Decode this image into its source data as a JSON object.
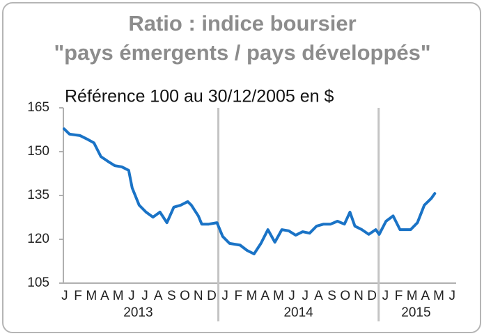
{
  "chart_data": {
    "type": "line",
    "title": "Ratio : indice boursier",
    "title_line2": "\"pays émergents / pays développés\"",
    "subtitle": "Référence 100 au 30/12/2005 en $",
    "x": [
      0.45,
      0.86,
      1.65,
      2.17,
      2.69,
      3.21,
      3.73,
      4.25,
      4.77,
      5.29,
      5.55,
      6.07,
      6.59,
      7.11,
      7.63,
      8.15,
      8.67,
      9.19,
      9.71,
      9.98,
      10.5,
      10.76,
      11.28,
      11.9,
      12.32,
      12.84,
      13.63,
      14.15,
      14.67,
      15.19,
      15.71,
      16.23,
      16.75,
      17.27,
      17.79,
      18.31,
      18.83,
      19.35,
      19.88,
      20.4,
      20.92,
      21.44,
      21.85,
      22.22,
      22.74,
      23.26,
      23.78,
      24.04,
      24.55,
      25.08,
      25.6,
      26.39,
      26.9,
      27.42,
      27.94,
      28.2
    ],
    "series": [
      {
        "color": "#1a73c6",
        "values": [
          157.8,
          156,
          155.5,
          154.3,
          153,
          148.3,
          146.7,
          145.2,
          144.8,
          143.6,
          137.6,
          131.7,
          129.3,
          127.6,
          129.3,
          125.7,
          131,
          131.7,
          132.9,
          131.7,
          128,
          125.2,
          125.2,
          125.7,
          121,
          118.6,
          118,
          116.2,
          115,
          118.6,
          123.3,
          119,
          123.3,
          122.9,
          121.4,
          122.6,
          122.1,
          124.5,
          125.2,
          125.2,
          126.2,
          125.2,
          129.3,
          124.5,
          123.3,
          121.7,
          123.3,
          121.7,
          126.2,
          128,
          123.3,
          123.3,
          125.7,
          131.7,
          134,
          135.7
        ]
      }
    ],
    "xlim": [
      0.4,
      29.8
    ],
    "ylim": [
      105,
      165
    ],
    "yticks": [
      105,
      120,
      135,
      150,
      165
    ],
    "xticks": [
      {
        "value": 0.5,
        "label": "J"
      },
      {
        "value": 1.5,
        "label": "F"
      },
      {
        "value": 2.5,
        "label": "M"
      },
      {
        "value": 3.5,
        "label": "A"
      },
      {
        "value": 4.5,
        "label": "M"
      },
      {
        "value": 5.5,
        "label": "J"
      },
      {
        "value": 6.5,
        "label": "J"
      },
      {
        "value": 7.5,
        "label": "A"
      },
      {
        "value": 8.5,
        "label": "S"
      },
      {
        "value": 9.5,
        "label": "O"
      },
      {
        "value": 10.5,
        "label": "N"
      },
      {
        "value": 11.5,
        "label": "D"
      },
      {
        "value": 12.5,
        "label": "J"
      },
      {
        "value": 13.5,
        "label": "F"
      },
      {
        "value": 14.5,
        "label": "M"
      },
      {
        "value": 15.5,
        "label": "A"
      },
      {
        "value": 16.5,
        "label": "M"
      },
      {
        "value": 17.5,
        "label": "J"
      },
      {
        "value": 18.5,
        "label": "J"
      },
      {
        "value": 19.5,
        "label": "A"
      },
      {
        "value": 20.5,
        "label": "S"
      },
      {
        "value": 21.5,
        "label": "O"
      },
      {
        "value": 22.5,
        "label": "N"
      },
      {
        "value": 23.5,
        "label": "D"
      },
      {
        "value": 24.5,
        "label": "J"
      },
      {
        "value": 25.5,
        "label": "F"
      },
      {
        "value": 26.5,
        "label": "M"
      },
      {
        "value": 27.5,
        "label": "A"
      },
      {
        "value": 28.5,
        "label": "M"
      },
      {
        "value": 29.5,
        "label": "J"
      }
    ],
    "year_ticks": [
      {
        "value": 6,
        "label": "2013"
      },
      {
        "value": 18,
        "label": "2014"
      },
      {
        "value": 26.8,
        "label": "2015"
      }
    ],
    "year_bounds": [
      12,
      24
    ]
  }
}
